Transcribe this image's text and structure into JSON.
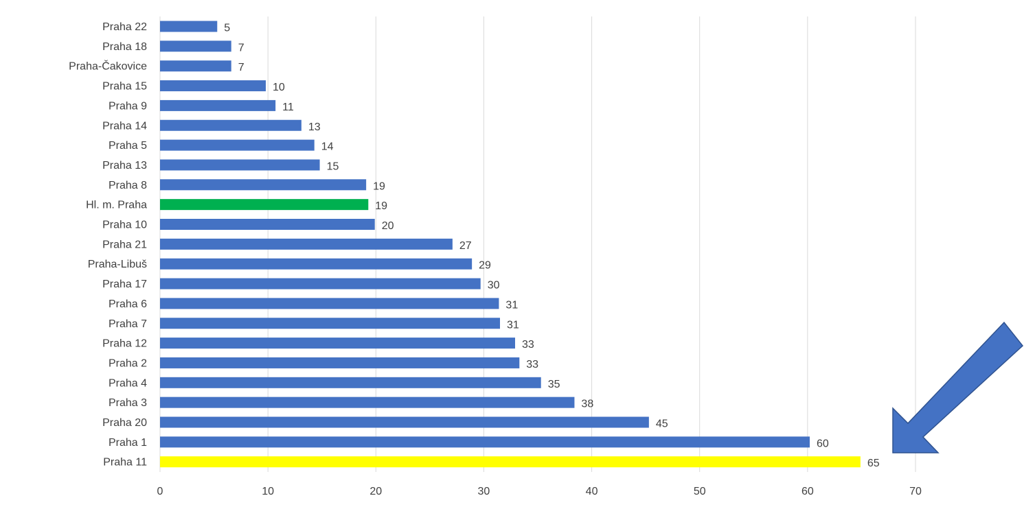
{
  "chart_data": {
    "type": "bar",
    "orientation": "horizontal",
    "categories": [
      "Praha 22",
      "Praha 18",
      "Praha-Čakovice",
      "Praha 15",
      "Praha 9",
      "Praha 14",
      "Praha 5",
      "Praha 13",
      "Praha 8",
      "Hl. m. Praha",
      "Praha 10",
      "Praha 21",
      "Praha-Libuš",
      "Praha 17",
      "Praha 6",
      "Praha 7",
      "Praha 12",
      "Praha 2",
      "Praha 4",
      "Praha 3",
      "Praha 20",
      "Praha 1",
      "Praha 11"
    ],
    "values": [
      5.3,
      6.6,
      6.6,
      9.8,
      10.7,
      13.1,
      14.3,
      14.8,
      19.1,
      19.3,
      19.9,
      27.1,
      28.9,
      29.7,
      31.4,
      31.5,
      32.9,
      33.3,
      35.3,
      38.4,
      45.3,
      60.2,
      64.9
    ],
    "data_labels": [
      "5",
      "7",
      "7",
      "10",
      "11",
      "13",
      "14",
      "15",
      "19",
      "19",
      "20",
      "27",
      "29",
      "30",
      "31",
      "31",
      "33",
      "33",
      "35",
      "38",
      "45",
      "60",
      "65"
    ],
    "xlim": [
      0,
      70
    ],
    "x_ticks": [
      0,
      10,
      20,
      30,
      40,
      50,
      60,
      70
    ],
    "grid": true,
    "legend": "none",
    "title": "",
    "xlabel": "",
    "ylabel": "",
    "colors": {
      "default": "#4472C4",
      "highlight_green": "#00B050",
      "highlight_yellow": "#FFFF00",
      "text": "#404040",
      "grid": "#D9D9D9",
      "arrow": "#4472C4",
      "arrow_stroke": "#2F528F"
    },
    "highlights": {
      "Hl. m. Praha": "highlight_green",
      "Praha 11": "highlight_yellow"
    },
    "annotations": [
      {
        "type": "arrow",
        "icon": "arrow-down-left-icon",
        "points_to": "Praha 11"
      }
    ]
  }
}
